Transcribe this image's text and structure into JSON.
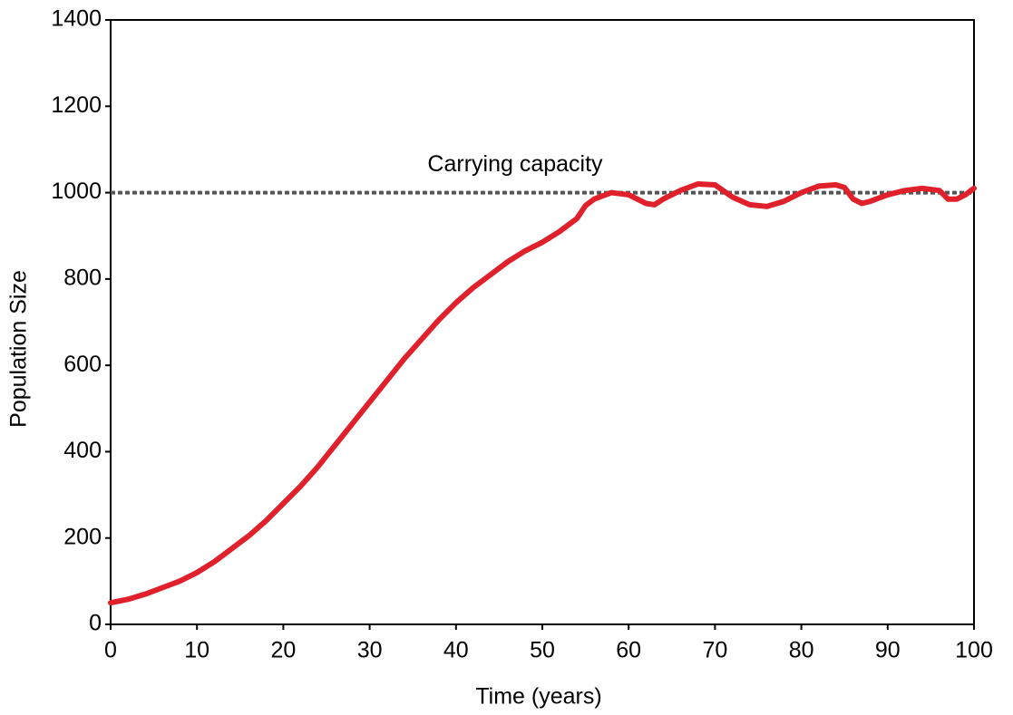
{
  "chart_data": {
    "type": "line",
    "x_label": "Time (years)",
    "y_label": "Population Size",
    "x": [
      0,
      2,
      4,
      6,
      8,
      10,
      12,
      14,
      16,
      18,
      20,
      22,
      24,
      26,
      28,
      30,
      32,
      34,
      36,
      38,
      40,
      42,
      44,
      46,
      48,
      50,
      52,
      54,
      55,
      56,
      58,
      60,
      62,
      63,
      64,
      66,
      68,
      70,
      72,
      74,
      76,
      78,
      80,
      82,
      84,
      85,
      86,
      87,
      88,
      90,
      92,
      94,
      96,
      97,
      98,
      99,
      100
    ],
    "series": [
      {
        "name": "Population",
        "color": "#e0202a",
        "values": [
          50,
          58,
          70,
          85,
          100,
          120,
          145,
          175,
          205,
          240,
          280,
          320,
          365,
          415,
          465,
          515,
          565,
          615,
          660,
          705,
          745,
          780,
          810,
          840,
          865,
          885,
          910,
          940,
          970,
          985,
          1000,
          995,
          975,
          972,
          985,
          1005,
          1020,
          1018,
          990,
          972,
          968,
          980,
          1000,
          1015,
          1018,
          1012,
          985,
          975,
          980,
          995,
          1005,
          1010,
          1005,
          985,
          985,
          995,
          1010
        ]
      }
    ],
    "reference_line": {
      "value": 1000,
      "label": "Carrying capacity",
      "color": "#555555"
    },
    "xlim": [
      0,
      100
    ],
    "xticks": [
      0,
      10,
      20,
      30,
      40,
      50,
      60,
      70,
      80,
      90,
      100
    ],
    "ylim": [
      0,
      1400
    ],
    "yticks": [
      0,
      200,
      400,
      600,
      800,
      1000,
      1200,
      1400
    ],
    "grid": false
  }
}
